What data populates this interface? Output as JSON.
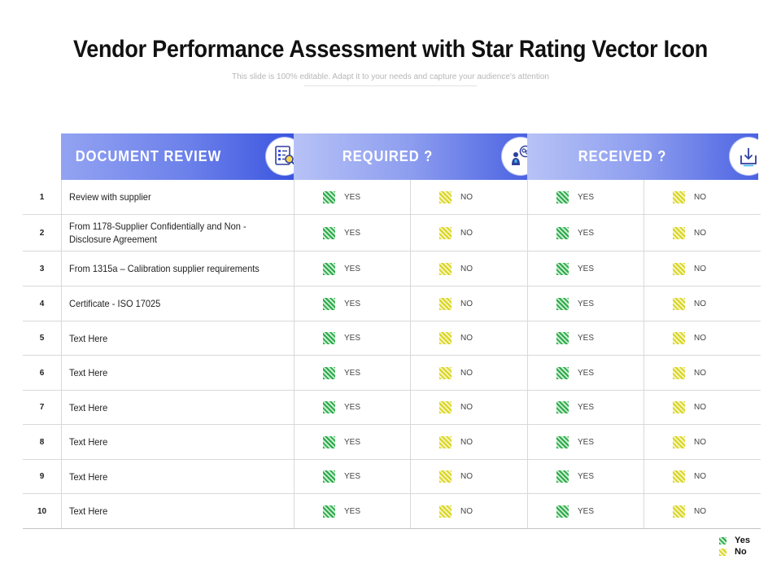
{
  "title": "Vendor Performance Assessment with Star Rating Vector Icon",
  "subtitle": "This slide is 100% editable. Adapt it to your needs and capture your audience's attention",
  "headers": {
    "document_review": "DOCUMENT REVIEW",
    "required": "REQUIRED ?",
    "received": "RECEIVED ?"
  },
  "colors": {
    "header_blue_dark": "#3b55df",
    "header_blue_light": "#b7c2f6",
    "yes_green": "#2ea84a",
    "no_yellow": "#d8d51f"
  },
  "option_labels": {
    "yes": "YES",
    "no": "NO"
  },
  "rows": [
    {
      "num": "1",
      "doc": "Review with supplier"
    },
    {
      "num": "2",
      "doc": "From 1178-Supplier Confidentially and Non - Disclosure Agreement"
    },
    {
      "num": "3",
      "doc": "From 1315a – Calibration supplier requirements"
    },
    {
      "num": "4",
      "doc": "Certificate - ISO 17025"
    },
    {
      "num": "5",
      "doc": "Text Here"
    },
    {
      "num": "6",
      "doc": "Text Here"
    },
    {
      "num": "7",
      "doc": "Text Here"
    },
    {
      "num": "8",
      "doc": "Text Here"
    },
    {
      "num": "9",
      "doc": "Text Here"
    },
    {
      "num": "10",
      "doc": "Text Here"
    }
  ],
  "legend": {
    "yes": "Yes",
    "no": "No"
  },
  "icons": {
    "document_review": "document-search-icon",
    "required": "person-thinking-icon",
    "received": "download-tray-icon",
    "yes": "green-hatch-icon",
    "no": "yellow-hatch-icon"
  }
}
